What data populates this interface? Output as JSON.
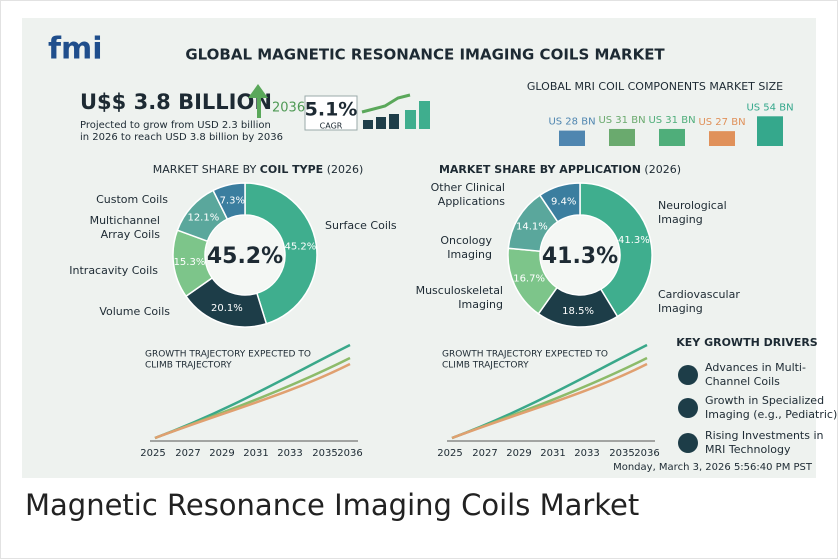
{
  "logo": "fmi",
  "title": "GLOBAL MAGNETIC RESONANCE IMAGING COILS MARKET",
  "headline": {
    "value": "U$$ 3.8 BILLION",
    "year": "2036",
    "note": [
      "Projected to grow from USD 2.3 billion",
      "in 2026 to reach USD 3.8 billion by 2036"
    ],
    "cagr": "5.1%",
    "cagr_label": "CAGR"
  },
  "components": {
    "title": "GLOBAL MRI COIL COMPONENTS MARKET SIZE",
    "bars": [
      {
        "label": "US 28 BN",
        "value": 28,
        "color": "#4f86b0"
      },
      {
        "label": "US 31 BN",
        "value": 31,
        "color": "#6aaa6e"
      },
      {
        "label": "US 31 BN",
        "value": 31,
        "color": "#4fae7a"
      },
      {
        "label": "US 27 BN",
        "value": 27,
        "color": "#e0915a"
      },
      {
        "label": "US 54 BN",
        "value": 54,
        "color": "#35a88c"
      }
    ]
  },
  "donuts": [
    {
      "title": [
        "MARKET SHARE BY ",
        "COIL TYPE",
        " (2026)"
      ],
      "center": "45.2%",
      "slices": [
        {
          "name": [
            "Surface Coils"
          ],
          "value": 45.2,
          "label": "45.2%",
          "color": "#3fae8e"
        },
        {
          "name": [
            "Volume Coils"
          ],
          "value": 20.1,
          "label": "20.1%",
          "color": "#1d3d48"
        },
        {
          "name": [
            "Intracavity Coils"
          ],
          "value": 15.3,
          "label": "15.3%",
          "color": "#7dc58a"
        },
        {
          "name": [
            "Multichannel",
            "Array Coils"
          ],
          "value": 12.1,
          "label": "12.1%",
          "color": "#5aa79c"
        },
        {
          "name": [
            "Custom Coils"
          ],
          "value": 7.3,
          "label": "7.3%",
          "color": "#3b7e9f"
        }
      ]
    },
    {
      "title": [
        "MARKET SHARE BY APPLICATION",
        " (2026)"
      ],
      "center": "41.3%",
      "slices": [
        {
          "name": [
            "Neurological",
            "Imaging"
          ],
          "value": 41.3,
          "label": "41.3%",
          "color": "#3fae8e"
        },
        {
          "name": [
            "Cardiovascular",
            "Imaging"
          ],
          "value": 18.5,
          "label": "18.5%",
          "color": "#1d3d48"
        },
        {
          "name": [
            "Musculoskeletal",
            "Imaging"
          ],
          "value": 16.7,
          "label": "16.7%",
          "color": "#7dc58a"
        },
        {
          "name": [
            "Oncology",
            "Imaging"
          ],
          "value": 14.1,
          "label": "14.1%",
          "color": "#5aa79c"
        },
        {
          "name": [
            "Other Clinical",
            "Applications"
          ],
          "value": 9.4,
          "label": "9.4%",
          "color": "#3b7e9f"
        }
      ]
    }
  ],
  "trajectories": [
    {
      "title": [
        "GROWTH TRAJECTORY EXPECTED TO",
        "CLIMB TRAJECTORY"
      ],
      "x": [
        "2025",
        "2027",
        "2029",
        "2031",
        "2033",
        "2035",
        "2036"
      ]
    },
    {
      "title": [
        "GROWTH TRAJECTORY EXPECTED TO",
        "CLIMB TRAJECTORY"
      ],
      "x": [
        "2025",
        "2027",
        "2029",
        "2031",
        "2033",
        "2035",
        "2036"
      ]
    }
  ],
  "drivers": {
    "title": "KEY GROWTH DRIVERS",
    "items": [
      [
        "Advances in Multi-",
        "Channel Coils"
      ],
      [
        "Growth in Specialized",
        "Imaging (e.g., Pediatric)"
      ],
      [
        "Rising Investments in",
        "MRI Technology"
      ]
    ]
  },
  "timestamp": "Monday, March 3, 2026 5:56:40 PM PST",
  "caption": "Magnetic Resonance Imaging Coils Market"
}
